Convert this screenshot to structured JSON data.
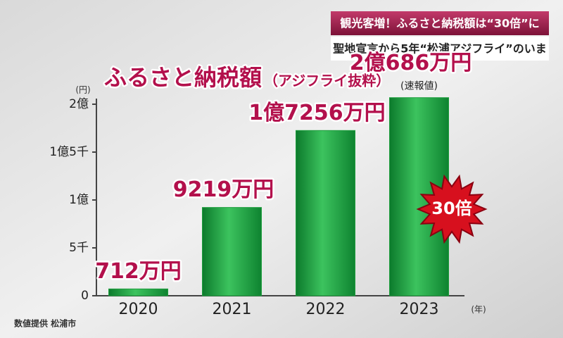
{
  "header": {
    "line1": "観光客増！ふるさと納税額は“30倍”に",
    "line2": "聖地宣言から5年“松浦アジフライ”のいま"
  },
  "chart_data": {
    "type": "bar",
    "title": "ふるさと納税額",
    "subtitle": "（アジフライ抜粋）",
    "y_unit": "(円)",
    "x_unit": "(年)",
    "categories": [
      "2020",
      "2021",
      "2022",
      "2023"
    ],
    "values": [
      7120000,
      92190000,
      172560000,
      206860000
    ],
    "value_labels": [
      "712万円",
      "9219万円",
      "1億7256万円",
      "2億686万円"
    ],
    "color": "#1f9e3e",
    "ylim": [
      0,
      200000000
    ],
    "yticks": [
      0,
      {
        "value": 50000000,
        "label": "5千"
      },
      {
        "value": 100000000,
        "label": "1億"
      },
      {
        "value": 150000000,
        "label": "1億5千"
      },
      {
        "value": 200000000,
        "label": "2億"
      }
    ],
    "annotations": {
      "preliminary": "(速報値)",
      "burst": "30倍"
    },
    "source": "数値提供 松浦市"
  }
}
